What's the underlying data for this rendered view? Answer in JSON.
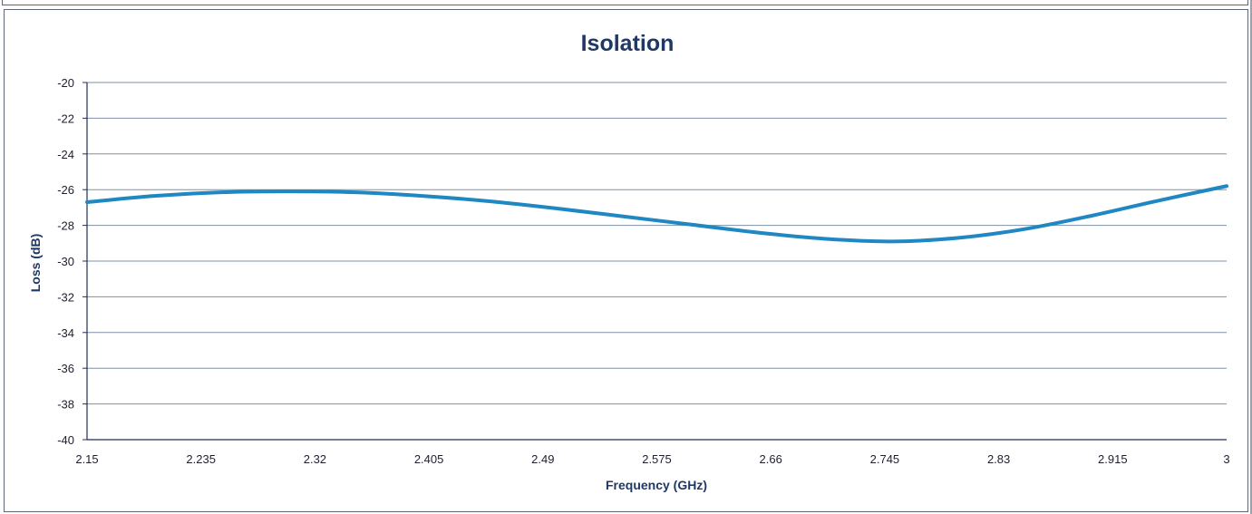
{
  "colors": {
    "series": "#1f87c2",
    "gridline": "#7f8fa6",
    "axis": "#1f2f55",
    "title": "#1f3864",
    "frame": "#5d6775"
  },
  "chart_data": {
    "type": "line",
    "title": "Isolation",
    "xlabel": "Frequency (GHz)",
    "ylabel": "Loss (dB)",
    "x_tick_labels": [
      "2.15",
      "2.235",
      "2.32",
      "2.405",
      "2.49",
      "2.575",
      "2.66",
      "2.745",
      "2.83",
      "2.915",
      "3"
    ],
    "y_tick_labels": [
      "-20",
      "-22",
      "-24",
      "-26",
      "-28",
      "-30",
      "-32",
      "-34",
      "-36",
      "-38",
      "-40"
    ],
    "xlim": [
      2.15,
      3
    ],
    "ylim": [
      -40,
      -20
    ],
    "grid": "horizontal",
    "legend": "none",
    "series": [
      {
        "x": [
          2.15,
          2.2,
          2.25,
          2.3,
          2.35,
          2.4,
          2.45,
          2.5,
          2.55,
          2.6,
          2.65,
          2.7,
          2.75,
          2.8,
          2.85,
          2.9,
          2.95,
          3.0
        ],
        "y": [
          -26.7,
          -26.35,
          -26.15,
          -26.1,
          -26.15,
          -26.35,
          -26.65,
          -27.05,
          -27.5,
          -27.95,
          -28.4,
          -28.75,
          -28.9,
          -28.7,
          -28.2,
          -27.45,
          -26.6,
          -25.8
        ]
      }
    ]
  }
}
